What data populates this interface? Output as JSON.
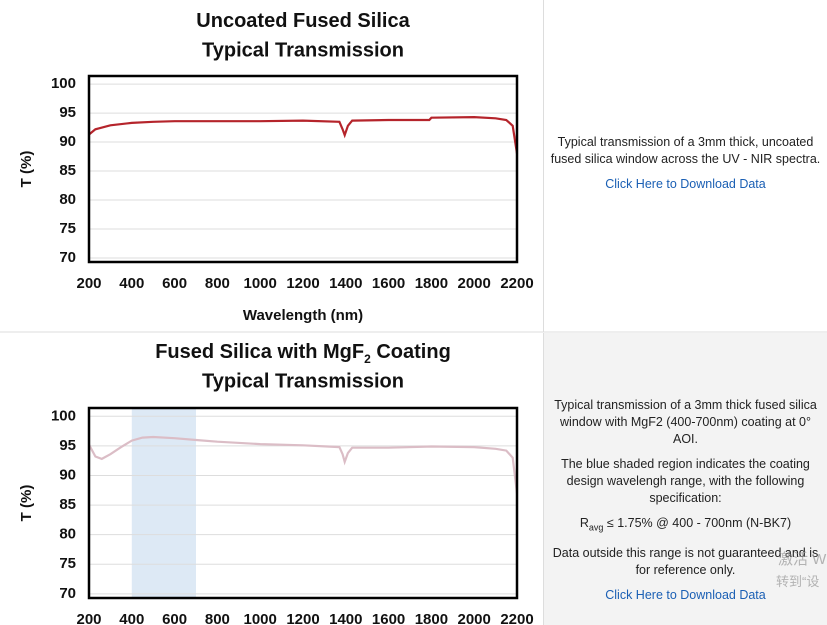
{
  "chart_data": [
    {
      "type": "line",
      "title": "Uncoated Fused Silica",
      "subtitle": "Typical Transmission",
      "xlabel": "Wavelength (nm)",
      "ylabel": "T (%)",
      "x": [
        200,
        230,
        300,
        400,
        500,
        600,
        800,
        1000,
        1200,
        1370,
        1385,
        1395,
        1410,
        1430,
        1600,
        1790,
        1800,
        2000,
        2100,
        2150,
        2180,
        2200
      ],
      "values": [
        91.3,
        92.2,
        92.9,
        93.3,
        93.5,
        93.6,
        93.6,
        93.6,
        93.7,
        93.5,
        92.2,
        91.2,
        92.8,
        93.7,
        93.8,
        93.8,
        94.2,
        94.3,
        94.1,
        93.8,
        92.8,
        88.0
      ],
      "color": "#b5242b",
      "xlim": [
        200,
        2200
      ],
      "ylim": [
        69.3,
        101.4
      ],
      "xticks": [
        200,
        400,
        600,
        800,
        1000,
        1200,
        1400,
        1600,
        1800,
        2000,
        2200
      ],
      "yticks": [
        70,
        75,
        80,
        85,
        90,
        95,
        100
      ],
      "grid": true
    },
    {
      "type": "line",
      "title": "Fused Silica with MgF",
      "title_sub": "2",
      "title_tail": " Coating",
      "subtitle": "Typical Transmission",
      "ylabel": "T (%)",
      "x": [
        200,
        230,
        260,
        300,
        350,
        400,
        450,
        500,
        600,
        700,
        800,
        1000,
        1200,
        1370,
        1385,
        1395,
        1410,
        1430,
        1600,
        1800,
        2000,
        2100,
        2150,
        2180,
        2200
      ],
      "values": [
        95.2,
        93.2,
        92.8,
        93.6,
        94.8,
        95.9,
        96.4,
        96.5,
        96.3,
        96.0,
        95.7,
        95.3,
        95.1,
        94.8,
        93.6,
        92.3,
        93.8,
        94.7,
        94.7,
        94.9,
        94.8,
        94.5,
        94.2,
        93.0,
        87.0
      ],
      "color": "#dbbdc6",
      "shade": [
        400,
        700
      ],
      "shade_color": "#dde9f5",
      "xlim": [
        200,
        2200
      ],
      "ylim": [
        69.3,
        101.4
      ],
      "xticks": [
        200,
        400,
        600,
        800,
        1000,
        1200,
        1400,
        1600,
        1800,
        2000,
        2200
      ],
      "yticks": [
        70,
        75,
        80,
        85,
        90,
        95,
        100
      ],
      "grid": true
    }
  ],
  "panels": [
    {
      "paragraphs": [
        "Typical transmission of a 3mm thick, uncoated fused silica window across the UV - NIR spectra."
      ],
      "link": "Click Here to Download Data"
    },
    {
      "paragraphs": [
        "Typical transmission of a 3mm thick fused silica window with MgF2 (400-700nm) coating at 0° AOI.",
        "The blue shaded region indicates the coating design wavelengh range, with the following specification:"
      ],
      "spec": "R",
      "spec_sub": "avg",
      "spec_tail": " ≤ 1.75% @ 400 - 700nm (N-BK7)",
      "note": "Data outside this range is not guaranteed and is for reference only.",
      "link": "Click Here to Download Data"
    }
  ],
  "watermark": [
    "激活 W",
    "转到“设"
  ]
}
